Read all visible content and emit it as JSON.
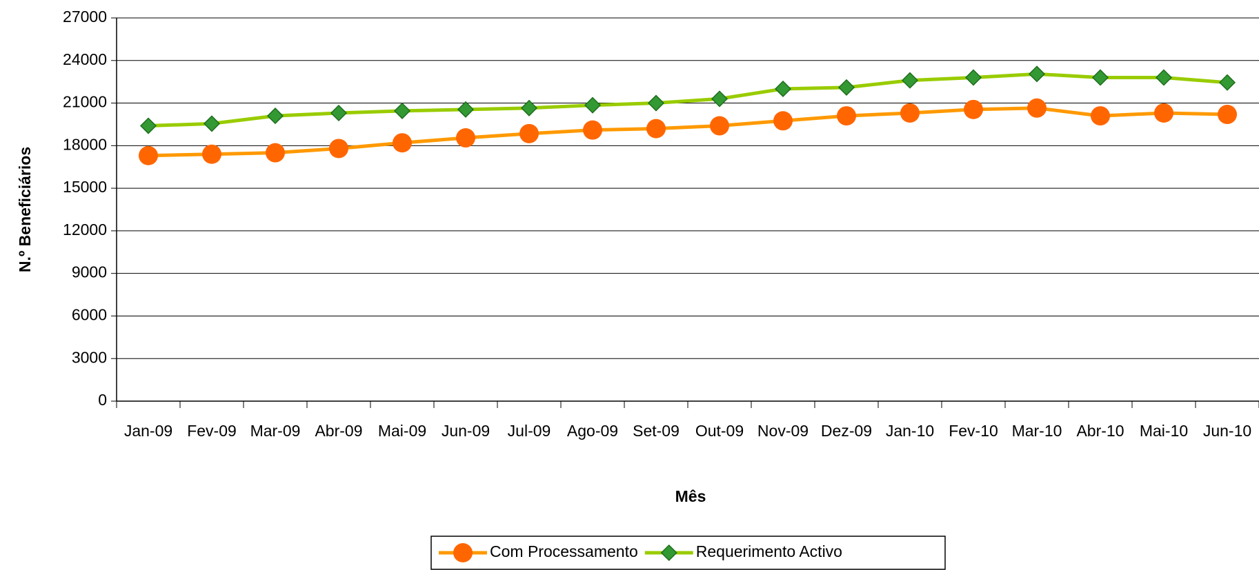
{
  "chart_data": {
    "type": "line",
    "y_label": "N.º Beneficiários",
    "x_label": "Mês",
    "categories": [
      "Jan-09",
      "Fev-09",
      "Mar-09",
      "Abr-09",
      "Mai-09",
      "Jun-09",
      "Jul-09",
      "Ago-09",
      "Set-09",
      "Out-09",
      "Nov-09",
      "Dez-09",
      "Jan-10",
      "Fev-10",
      "Mar-10",
      "Abr-10",
      "Mai-10",
      "Jun-10"
    ],
    "series": [
      {
        "name": "Com Processamento",
        "color": "#ff9900",
        "marker": "circle",
        "marker_color": "#ff6600",
        "values": [
          17300,
          17400,
          17500,
          17800,
          18200,
          18550,
          18850,
          19100,
          19200,
          19400,
          19750,
          20100,
          20300,
          20550,
          20650,
          20100,
          20300,
          20200
        ]
      },
      {
        "name": "Requerimento Activo",
        "color": "#99cc00",
        "marker": "diamond",
        "marker_color": "#339933",
        "values": [
          19400,
          19550,
          20100,
          20300,
          20450,
          20550,
          20650,
          20850,
          21000,
          21300,
          22000,
          22100,
          22600,
          22800,
          23050,
          22800,
          22800,
          22450
        ]
      }
    ],
    "ylim": [
      0,
      27000
    ],
    "yticks": [
      0,
      3000,
      6000,
      9000,
      12000,
      15000,
      18000,
      21000,
      24000,
      27000
    ],
    "grid": true,
    "legend": "bottom"
  }
}
